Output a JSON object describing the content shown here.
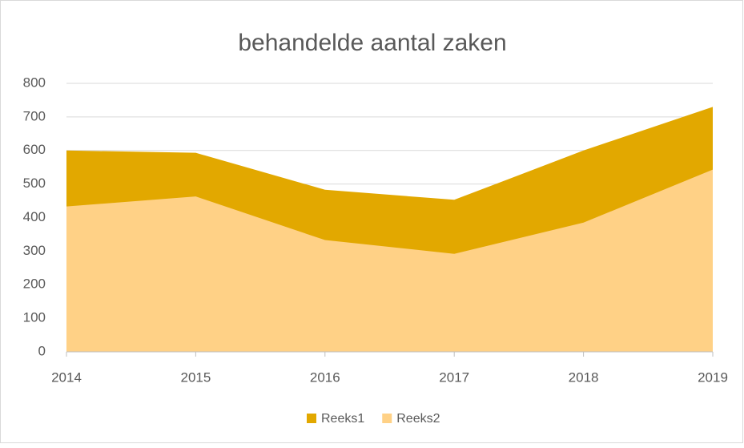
{
  "chart_data": {
    "type": "area",
    "title": "behandelde aantal zaken",
    "categories": [
      "2014",
      "2015",
      "2016",
      "2017",
      "2018",
      "2019"
    ],
    "series": [
      {
        "name": "Reeks1",
        "color": "#e2a800",
        "values": [
          600,
          593,
          483,
          453,
          600,
          730
        ]
      },
      {
        "name": "Reeks2",
        "color": "#ffd186",
        "values": [
          433,
          463,
          333,
          292,
          385,
          543
        ]
      }
    ],
    "ylim": [
      0,
      800
    ],
    "yticks": [
      0,
      100,
      200,
      300,
      400,
      500,
      600,
      700,
      800
    ],
    "grid": true,
    "legend": "bottom"
  }
}
